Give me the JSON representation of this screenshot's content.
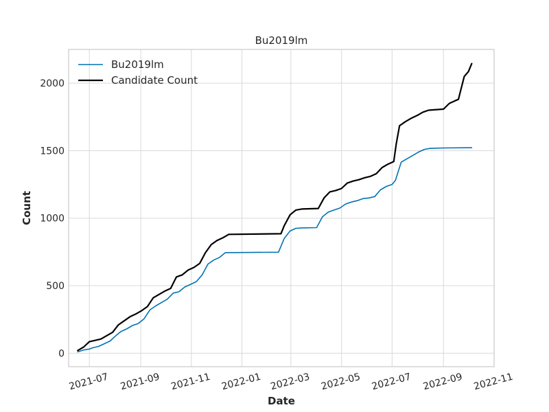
{
  "chart_data": {
    "type": "line",
    "title": "Bu2019lm",
    "xlabel": "Date",
    "ylabel": "Count",
    "ylim": [
      -100,
      2250
    ],
    "y_ticks": [
      0,
      500,
      1000,
      1500,
      2000
    ],
    "x_ticks": [
      "2021-07",
      "2021-09",
      "2021-11",
      "2022-01",
      "2022-03",
      "2022-05",
      "2022-07",
      "2022-09",
      "2022-11"
    ],
    "x_range": [
      "2021-06-06",
      "2022-11-01"
    ],
    "grid": true,
    "legend_position": "top-left",
    "series": [
      {
        "name": "Bu2019lm",
        "color": "#0072b2",
        "points": [
          [
            "2021-06-17",
            10
          ],
          [
            "2021-06-25",
            25
          ],
          [
            "2021-07-01",
            30
          ],
          [
            "2021-07-05",
            40
          ],
          [
            "2021-07-12",
            50
          ],
          [
            "2021-07-19",
            70
          ],
          [
            "2021-07-26",
            90
          ],
          [
            "2021-08-02",
            130
          ],
          [
            "2021-08-08",
            160
          ],
          [
            "2021-08-15",
            180
          ],
          [
            "2021-08-22",
            205
          ],
          [
            "2021-08-29",
            220
          ],
          [
            "2021-09-05",
            255
          ],
          [
            "2021-09-12",
            320
          ],
          [
            "2021-09-19",
            350
          ],
          [
            "2021-09-26",
            375
          ],
          [
            "2021-10-03",
            400
          ],
          [
            "2021-10-10",
            445
          ],
          [
            "2021-10-17",
            455
          ],
          [
            "2021-10-24",
            490
          ],
          [
            "2021-10-31",
            510
          ],
          [
            "2021-11-07",
            530
          ],
          [
            "2021-11-14",
            580
          ],
          [
            "2021-11-21",
            660
          ],
          [
            "2021-11-28",
            690
          ],
          [
            "2021-12-05",
            710
          ],
          [
            "2021-12-12",
            745
          ],
          [
            "2022-02-14",
            748
          ],
          [
            "2022-02-21",
            850
          ],
          [
            "2022-02-28",
            905
          ],
          [
            "2022-03-07",
            925
          ],
          [
            "2022-03-14",
            928
          ],
          [
            "2022-04-01",
            930
          ],
          [
            "2022-04-08",
            1010
          ],
          [
            "2022-04-15",
            1045
          ],
          [
            "2022-04-22",
            1060
          ],
          [
            "2022-04-29",
            1075
          ],
          [
            "2022-05-06",
            1105
          ],
          [
            "2022-05-13",
            1120
          ],
          [
            "2022-05-20",
            1130
          ],
          [
            "2022-05-27",
            1145
          ],
          [
            "2022-06-03",
            1150
          ],
          [
            "2022-06-10",
            1160
          ],
          [
            "2022-06-17",
            1210
          ],
          [
            "2022-06-24",
            1235
          ],
          [
            "2022-07-01",
            1250
          ],
          [
            "2022-07-05",
            1280
          ],
          [
            "2022-07-12",
            1415
          ],
          [
            "2022-07-19",
            1440
          ],
          [
            "2022-07-26",
            1465
          ],
          [
            "2022-08-02",
            1490
          ],
          [
            "2022-08-09",
            1510
          ],
          [
            "2022-08-16",
            1517
          ],
          [
            "2022-09-01",
            1520
          ],
          [
            "2022-10-05",
            1522
          ]
        ]
      },
      {
        "name": "Candidate Count",
        "color": "#000000",
        "points": [
          [
            "2021-06-17",
            20
          ],
          [
            "2021-06-24",
            45
          ],
          [
            "2021-07-01",
            85
          ],
          [
            "2021-07-08",
            95
          ],
          [
            "2021-07-15",
            105
          ],
          [
            "2021-07-22",
            130
          ],
          [
            "2021-07-29",
            155
          ],
          [
            "2021-08-05",
            210
          ],
          [
            "2021-08-12",
            240
          ],
          [
            "2021-08-19",
            270
          ],
          [
            "2021-08-26",
            290
          ],
          [
            "2021-09-02",
            315
          ],
          [
            "2021-09-09",
            345
          ],
          [
            "2021-09-16",
            410
          ],
          [
            "2021-09-23",
            435
          ],
          [
            "2021-09-30",
            460
          ],
          [
            "2021-10-07",
            480
          ],
          [
            "2021-10-14",
            565
          ],
          [
            "2021-10-21",
            580
          ],
          [
            "2021-10-28",
            615
          ],
          [
            "2021-11-04",
            635
          ],
          [
            "2021-11-11",
            665
          ],
          [
            "2021-11-18",
            745
          ],
          [
            "2021-11-25",
            805
          ],
          [
            "2021-12-02",
            835
          ],
          [
            "2021-12-09",
            855
          ],
          [
            "2021-12-16",
            880
          ],
          [
            "2022-02-17",
            885
          ],
          [
            "2022-02-21",
            945
          ],
          [
            "2022-02-28",
            1025
          ],
          [
            "2022-03-07",
            1060
          ],
          [
            "2022-03-14",
            1068
          ],
          [
            "2022-04-03",
            1072
          ],
          [
            "2022-04-10",
            1150
          ],
          [
            "2022-04-17",
            1195
          ],
          [
            "2022-04-24",
            1205
          ],
          [
            "2022-05-01",
            1220
          ],
          [
            "2022-05-08",
            1260
          ],
          [
            "2022-05-15",
            1275
          ],
          [
            "2022-05-22",
            1285
          ],
          [
            "2022-05-29",
            1300
          ],
          [
            "2022-06-05",
            1310
          ],
          [
            "2022-06-12",
            1330
          ],
          [
            "2022-06-19",
            1375
          ],
          [
            "2022-06-26",
            1400
          ],
          [
            "2022-07-03",
            1420
          ],
          [
            "2022-07-06",
            1550
          ],
          [
            "2022-07-10",
            1685
          ],
          [
            "2022-07-17",
            1715
          ],
          [
            "2022-07-24",
            1740
          ],
          [
            "2022-07-31",
            1760
          ],
          [
            "2022-08-07",
            1785
          ],
          [
            "2022-08-14",
            1800
          ],
          [
            "2022-09-01",
            1808
          ],
          [
            "2022-09-08",
            1850
          ],
          [
            "2022-09-15",
            1870
          ],
          [
            "2022-09-19",
            1880
          ],
          [
            "2022-09-26",
            2050
          ],
          [
            "2022-10-01",
            2085
          ],
          [
            "2022-10-05",
            2145
          ]
        ]
      }
    ]
  }
}
